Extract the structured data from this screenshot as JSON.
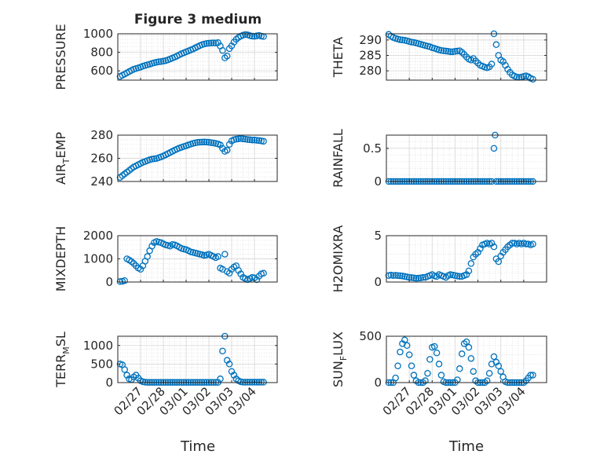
{
  "figure_title": "Figure 3 medium",
  "x_label": "Time",
  "colors": {
    "marker": "#0072BD",
    "grid": "#d9d9d9",
    "axis": "#262626"
  },
  "chart_data": [
    {
      "type": "scatter",
      "id": "pressure",
      "title": "Figure 3 medium",
      "ylabel": "PRESSURE",
      "xlim": [
        0,
        7
      ],
      "ylim": [
        500,
        1000
      ],
      "yticks": [
        600,
        800,
        1000
      ],
      "xticks": [
        "02/27",
        "02/28",
        "03/01",
        "03/02",
        "03/03",
        "03/04"
      ],
      "grid": true,
      "x": [
        0.1,
        0.2,
        0.3,
        0.4,
        0.5,
        0.6,
        0.7,
        0.8,
        0.9,
        1.0,
        1.1,
        1.2,
        1.3,
        1.4,
        1.5,
        1.6,
        1.7,
        1.8,
        1.9,
        2.0,
        2.1,
        2.2,
        2.3,
        2.4,
        2.5,
        2.6,
        2.7,
        2.8,
        2.9,
        3.0,
        3.1,
        3.2,
        3.3,
        3.4,
        3.5,
        3.6,
        3.7,
        3.8,
        3.9,
        4.0,
        4.1,
        4.2,
        4.3,
        4.4,
        4.5,
        4.6,
        4.7,
        4.8,
        4.9,
        5.0,
        5.1,
        5.2,
        5.3,
        5.4,
        5.5,
        5.6,
        5.7,
        5.8,
        5.9,
        6.0,
        6.1,
        6.2,
        6.3,
        6.4
      ],
      "y": [
        540,
        552,
        565,
        578,
        592,
        605,
        618,
        625,
        632,
        640,
        650,
        658,
        665,
        672,
        680,
        687,
        693,
        698,
        700,
        705,
        710,
        718,
        728,
        738,
        748,
        760,
        772,
        785,
        795,
        805,
        815,
        825,
        835,
        848,
        860,
        872,
        882,
        890,
        895,
        898,
        900,
        902,
        900,
        905,
        868,
        820,
        740,
        760,
        840,
        870,
        910,
        940,
        960,
        975,
        985,
        992,
        988,
        980,
        975,
        972,
        978,
        982,
        975,
        970
      ]
    },
    {
      "type": "scatter",
      "id": "theta",
      "ylabel": "THETA",
      "xlim": [
        0,
        7
      ],
      "ylim": [
        277,
        292
      ],
      "yticks": [
        280,
        285,
        290
      ],
      "xticks": [
        "02/27",
        "02/28",
        "03/01",
        "03/02",
        "03/03",
        "03/04"
      ],
      "grid": true,
      "x": [
        0.1,
        0.2,
        0.3,
        0.4,
        0.5,
        0.6,
        0.7,
        0.8,
        0.9,
        1.0,
        1.1,
        1.2,
        1.3,
        1.4,
        1.5,
        1.6,
        1.7,
        1.8,
        1.9,
        2.0,
        2.1,
        2.2,
        2.3,
        2.4,
        2.5,
        2.6,
        2.7,
        2.8,
        2.9,
        3.0,
        3.1,
        3.2,
        3.3,
        3.4,
        3.5,
        3.6,
        3.7,
        3.8,
        3.9,
        4.0,
        4.1,
        4.2,
        4.3,
        4.4,
        4.5,
        4.6,
        4.7,
        4.8,
        4.9,
        5.0,
        5.1,
        5.2,
        5.3,
        5.4,
        5.5,
        5.6,
        5.7,
        5.8,
        5.9,
        6.0,
        6.1,
        6.2,
        6.3,
        6.4
      ],
      "y": [
        291.8,
        291.2,
        290.8,
        290.5,
        290.3,
        290.1,
        290.0,
        289.9,
        289.7,
        289.5,
        289.3,
        289.2,
        289.0,
        288.8,
        288.6,
        288.4,
        288.2,
        288.0,
        287.8,
        287.5,
        287.3,
        287.0,
        286.8,
        286.6,
        286.5,
        286.4,
        286.3,
        286.2,
        286.2,
        286.3,
        286.4,
        286.5,
        286.0,
        285.3,
        284.5,
        283.8,
        283.5,
        284.0,
        283.2,
        282.5,
        281.8,
        281.5,
        281.2,
        281.0,
        281.3,
        282.2,
        292.0,
        288.5,
        285.0,
        283.5,
        283.0,
        281.8,
        280.5,
        279.5,
        278.7,
        278.3,
        278.0,
        277.9,
        278.0,
        278.2,
        278.4,
        278.1,
        277.6,
        277.3
      ]
    },
    {
      "type": "scatter",
      "id": "air-temp",
      "ylabel": "AIR_TEMP",
      "xlim": [
        0,
        7
      ],
      "ylim": [
        240,
        280
      ],
      "yticks": [
        240,
        260,
        280
      ],
      "xticks": [
        "02/27",
        "02/28",
        "03/01",
        "03/02",
        "03/03",
        "03/04"
      ],
      "grid": true,
      "x": [
        0.1,
        0.2,
        0.3,
        0.4,
        0.5,
        0.6,
        0.7,
        0.8,
        0.9,
        1.0,
        1.1,
        1.2,
        1.3,
        1.4,
        1.5,
        1.6,
        1.7,
        1.8,
        1.9,
        2.0,
        2.1,
        2.2,
        2.3,
        2.4,
        2.5,
        2.6,
        2.7,
        2.8,
        2.9,
        3.0,
        3.1,
        3.2,
        3.3,
        3.4,
        3.5,
        3.6,
        3.7,
        3.8,
        3.9,
        4.0,
        4.1,
        4.2,
        4.3,
        4.4,
        4.5,
        4.6,
        4.7,
        4.8,
        4.9,
        5.0,
        5.1,
        5.2,
        5.3,
        5.4,
        5.5,
        5.6,
        5.7,
        5.8,
        5.9,
        6.0,
        6.1,
        6.2,
        6.3,
        6.4
      ],
      "y": [
        243.5,
        245,
        246.5,
        248,
        249.5,
        251,
        252.5,
        253.5,
        254.5,
        255.5,
        256.5,
        257.2,
        258,
        258.7,
        259.3,
        259.6,
        259.8,
        260.5,
        261.2,
        262,
        263,
        264,
        265,
        266,
        267,
        268,
        268.8,
        269.5,
        270.2,
        270.8,
        271.5,
        272.2,
        272.8,
        273.3,
        273.7,
        273.9,
        274,
        274.1,
        274,
        273.8,
        273.5,
        273.2,
        272.8,
        272.4,
        271.5,
        268.5,
        266,
        267,
        272,
        275,
        276,
        276.5,
        276.8,
        277,
        276.8,
        276.5,
        276.2,
        276,
        275.8,
        275.8,
        275.5,
        275.3,
        275,
        274.7
      ]
    },
    {
      "type": "scatter",
      "id": "rainfall",
      "ylabel": "RAINFALL",
      "xlim": [
        0,
        7
      ],
      "ylim": [
        0,
        0.7
      ],
      "yticks": [
        0,
        0.5
      ],
      "xticks": [
        "02/27",
        "02/28",
        "03/01",
        "03/02",
        "03/03",
        "03/04"
      ],
      "grid": true,
      "x": [
        0.1,
        0.2,
        0.3,
        0.4,
        0.5,
        0.6,
        0.7,
        0.8,
        0.9,
        1.0,
        1.1,
        1.2,
        1.3,
        1.4,
        1.5,
        1.6,
        1.7,
        1.8,
        1.9,
        2.0,
        2.1,
        2.2,
        2.3,
        2.4,
        2.5,
        2.6,
        2.7,
        2.8,
        2.9,
        3.0,
        3.1,
        3.2,
        3.3,
        3.4,
        3.5,
        3.6,
        3.7,
        3.8,
        3.9,
        4.0,
        4.1,
        4.2,
        4.3,
        4.4,
        4.5,
        4.6,
        4.7,
        4.75,
        4.8,
        4.9,
        5.0,
        5.1,
        5.2,
        5.3,
        5.4,
        5.5,
        5.6,
        5.7,
        5.8,
        5.9,
        6.0,
        6.1,
        6.2,
        6.3,
        6.4
      ],
      "y": [
        0,
        0,
        0,
        0,
        0,
        0,
        0,
        0,
        0,
        0,
        0,
        0,
        0,
        0,
        0,
        0,
        0,
        0,
        0,
        0,
        0,
        0,
        0,
        0,
        0,
        0,
        0,
        0,
        0,
        0,
        0,
        0,
        0,
        0,
        0,
        0,
        0,
        0,
        0,
        0,
        0,
        0,
        0,
        0,
        0,
        0,
        0.5,
        0.7,
        0,
        0,
        0,
        0,
        0,
        0,
        0,
        0,
        0,
        0,
        0,
        0,
        0,
        0,
        0,
        0,
        0
      ]
    },
    {
      "type": "scatter",
      "id": "mixdepth",
      "ylabel": "MIXDEPTH",
      "xlim": [
        0,
        7
      ],
      "ylim": [
        0,
        2000
      ],
      "yticks": [
        0,
        1000,
        2000
      ],
      "xticks": [
        "02/27",
        "02/28",
        "03/01",
        "03/02",
        "03/03",
        "03/04"
      ],
      "grid": true,
      "x": [
        0.1,
        0.2,
        0.3,
        0.4,
        0.5,
        0.6,
        0.7,
        0.8,
        0.9,
        1.0,
        1.1,
        1.2,
        1.3,
        1.4,
        1.5,
        1.6,
        1.7,
        1.8,
        1.9,
        2.0,
        2.1,
        2.2,
        2.3,
        2.4,
        2.5,
        2.6,
        2.7,
        2.8,
        2.9,
        3.0,
        3.1,
        3.2,
        3.3,
        3.4,
        3.5,
        3.6,
        3.7,
        3.8,
        3.9,
        4.0,
        4.1,
        4.2,
        4.3,
        4.4,
        4.5,
        4.6,
        4.7,
        4.8,
        4.9,
        5.0,
        5.1,
        5.2,
        5.3,
        5.4,
        5.5,
        5.6,
        5.7,
        5.8,
        5.9,
        6.0,
        6.1,
        6.2,
        6.3,
        6.4
      ],
      "y": [
        20,
        30,
        60,
        1000,
        950,
        880,
        800,
        700,
        600,
        550,
        700,
        900,
        1100,
        1350,
        1550,
        1700,
        1750,
        1720,
        1700,
        1650,
        1600,
        1580,
        1550,
        1620,
        1600,
        1560,
        1500,
        1450,
        1420,
        1400,
        1350,
        1300,
        1280,
        1250,
        1230,
        1200,
        1180,
        1150,
        1170,
        1200,
        1150,
        1100,
        1050,
        1100,
        600,
        550,
        1200,
        450,
        380,
        550,
        650,
        700,
        500,
        350,
        200,
        150,
        100,
        150,
        200,
        180,
        100,
        250,
        350,
        380
      ]
    },
    {
      "type": "scatter",
      "id": "h2o-mixing-ratio",
      "ylabel": "H2OMIXRA",
      "xlim": [
        0,
        7
      ],
      "ylim": [
        0,
        5
      ],
      "yticks": [
        0,
        5
      ],
      "xticks": [
        "02/27",
        "02/28",
        "03/01",
        "03/02",
        "03/03",
        "03/04"
      ],
      "grid": true,
      "x": [
        0.1,
        0.2,
        0.3,
        0.4,
        0.5,
        0.6,
        0.7,
        0.8,
        0.9,
        1.0,
        1.1,
        1.2,
        1.3,
        1.4,
        1.5,
        1.6,
        1.7,
        1.8,
        1.9,
        2.0,
        2.1,
        2.2,
        2.3,
        2.4,
        2.5,
        2.6,
        2.7,
        2.8,
        2.9,
        3.0,
        3.1,
        3.2,
        3.3,
        3.4,
        3.5,
        3.6,
        3.7,
        3.8,
        3.9,
        4.0,
        4.1,
        4.2,
        4.3,
        4.4,
        4.5,
        4.6,
        4.7,
        4.8,
        4.9,
        5.0,
        5.1,
        5.2,
        5.3,
        5.4,
        5.5,
        5.6,
        5.7,
        5.8,
        5.9,
        6.0,
        6.1,
        6.2,
        6.3,
        6.4
      ],
      "y": [
        0.7,
        0.75,
        0.7,
        0.72,
        0.7,
        0.68,
        0.65,
        0.6,
        0.55,
        0.5,
        0.48,
        0.45,
        0.4,
        0.42,
        0.45,
        0.5,
        0.5,
        0.6,
        0.7,
        0.8,
        0.65,
        0.6,
        0.8,
        0.7,
        0.6,
        0.5,
        0.7,
        0.8,
        0.75,
        0.7,
        0.65,
        0.6,
        0.6,
        0.7,
        0.8,
        1.2,
        2.0,
        2.7,
        3.0,
        3.2,
        3.6,
        4.0,
        4.1,
        4.2,
        4.1,
        4.2,
        3.8,
        2.5,
        2.2,
        2.8,
        3.2,
        3.5,
        3.8,
        4.0,
        4.2,
        4.2,
        4.1,
        4.2,
        4.1,
        4.2,
        4.1,
        4.1,
        4.0,
        4.1
      ]
    },
    {
      "type": "scatter",
      "id": "terr-msl",
      "ylabel": "TERR_MSL",
      "xlim": [
        0,
        7
      ],
      "ylim": [
        0,
        1250
      ],
      "yticks": [
        0,
        500,
        1000
      ],
      "xticks": [
        "02/27",
        "02/28",
        "03/01",
        "03/02",
        "03/03",
        "03/04"
      ],
      "grid": true,
      "x": [
        0.1,
        0.2,
        0.3,
        0.4,
        0.5,
        0.6,
        0.7,
        0.8,
        0.9,
        1.0,
        1.1,
        1.2,
        1.3,
        1.4,
        1.5,
        1.6,
        1.7,
        1.8,
        1.9,
        2.0,
        2.1,
        2.2,
        2.3,
        2.4,
        2.5,
        2.6,
        2.7,
        2.8,
        2.9,
        3.0,
        3.1,
        3.2,
        3.3,
        3.4,
        3.5,
        3.6,
        3.7,
        3.8,
        3.9,
        4.0,
        4.1,
        4.2,
        4.3,
        4.4,
        4.5,
        4.6,
        4.7,
        4.8,
        4.9,
        5.0,
        5.1,
        5.2,
        5.3,
        5.4,
        5.5,
        5.6,
        5.7,
        5.8,
        5.9,
        6.0,
        6.1,
        6.2,
        6.3,
        6.4
      ],
      "y": [
        500,
        480,
        350,
        200,
        100,
        80,
        150,
        200,
        120,
        50,
        20,
        10,
        5,
        5,
        5,
        5,
        5,
        5,
        5,
        5,
        5,
        5,
        5,
        5,
        5,
        5,
        5,
        5,
        5,
        5,
        5,
        5,
        5,
        5,
        5,
        5,
        5,
        5,
        5,
        5,
        5,
        5,
        5,
        5,
        100,
        850,
        1250,
        600,
        500,
        300,
        200,
        100,
        50,
        20,
        10,
        10,
        10,
        10,
        10,
        10,
        10,
        10,
        10,
        10
      ]
    },
    {
      "type": "scatter",
      "id": "sun-flux",
      "ylabel": "SUN_FLUX",
      "xlim": [
        0,
        7
      ],
      "ylim": [
        0,
        500
      ],
      "yticks": [
        0,
        500
      ],
      "xticks": [
        "02/27",
        "02/28",
        "03/01",
        "03/02",
        "03/03",
        "03/04"
      ],
      "grid": true,
      "x": [
        0.1,
        0.2,
        0.3,
        0.4,
        0.5,
        0.6,
        0.7,
        0.8,
        0.9,
        1.0,
        1.1,
        1.2,
        1.3,
        1.4,
        1.5,
        1.6,
        1.7,
        1.8,
        1.9,
        2.0,
        2.1,
        2.2,
        2.3,
        2.4,
        2.5,
        2.6,
        2.7,
        2.8,
        2.9,
        3.0,
        3.1,
        3.2,
        3.3,
        3.4,
        3.5,
        3.6,
        3.7,
        3.8,
        3.9,
        4.0,
        4.1,
        4.2,
        4.3,
        4.4,
        4.5,
        4.6,
        4.7,
        4.8,
        4.9,
        5.0,
        5.1,
        5.2,
        5.3,
        5.4,
        5.5,
        5.6,
        5.7,
        5.8,
        5.9,
        6.0,
        6.1,
        6.2,
        6.3,
        6.4
      ],
      "y": [
        0,
        0,
        0,
        50,
        180,
        330,
        420,
        460,
        400,
        300,
        180,
        80,
        20,
        0,
        0,
        0,
        20,
        100,
        250,
        380,
        390,
        320,
        200,
        80,
        10,
        0,
        0,
        0,
        0,
        0,
        30,
        150,
        310,
        420,
        440,
        380,
        260,
        120,
        20,
        0,
        0,
        0,
        0,
        20,
        100,
        200,
        280,
        220,
        180,
        120,
        60,
        10,
        0,
        0,
        0,
        0,
        0,
        0,
        0,
        0,
        20,
        50,
        80,
        80
      ]
    }
  ]
}
